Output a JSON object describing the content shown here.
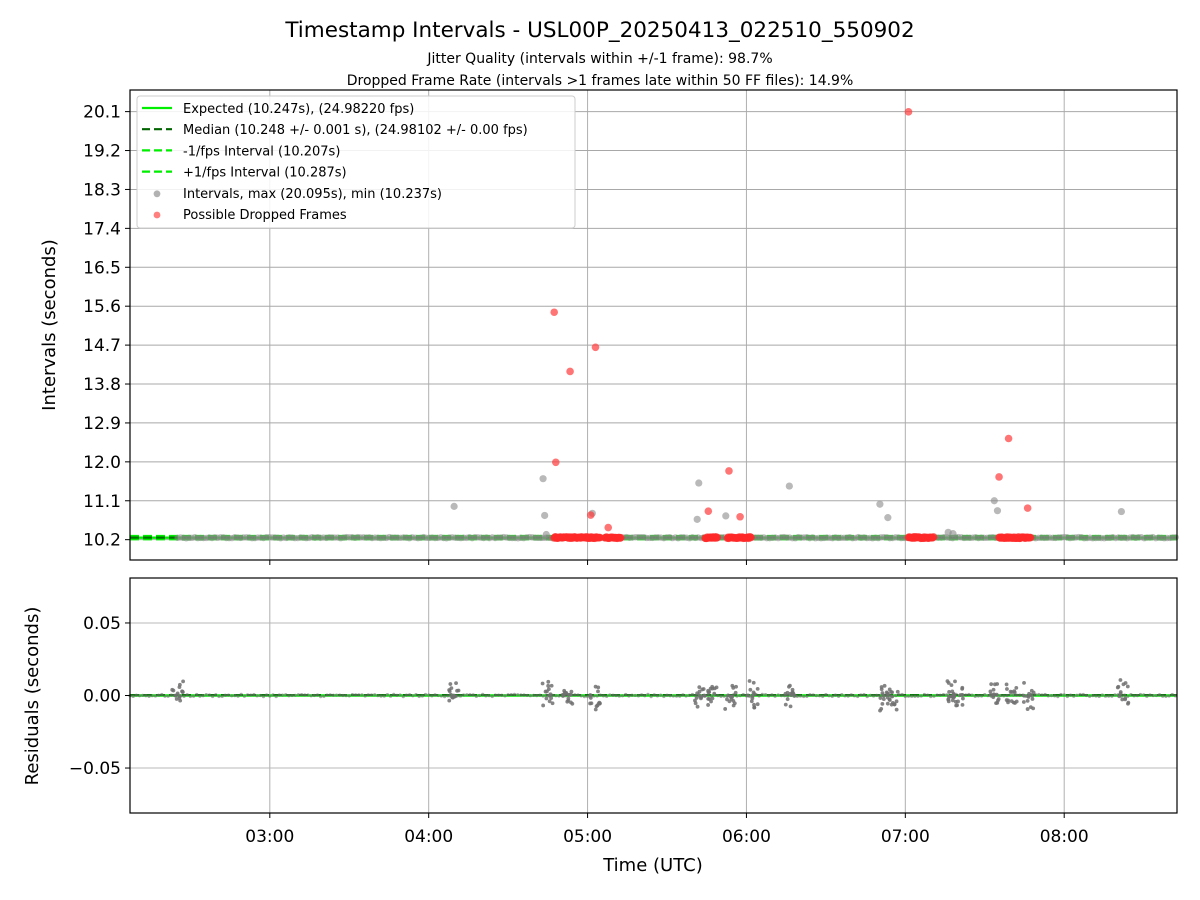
{
  "chart_data": {
    "type": "scatter",
    "title": "Timestamp Intervals - USL00P_20250413_022510_550902",
    "subtitle_lines": [
      "Jitter Quality (intervals within +/-1 frame): 98.7%",
      "Dropped Frame Rate (intervals >1 frames late within 50 FF files): 14.9%"
    ],
    "xlabel": "Time (UTC)",
    "x_ticks": [
      "03:00",
      "04:00",
      "05:00",
      "06:00",
      "07:00",
      "08:00"
    ],
    "x_tick_hours": [
      3,
      4,
      5,
      6,
      7,
      8
    ],
    "xlim_hours": [
      2.12,
      8.71
    ],
    "grid": true,
    "top_panel": {
      "ylabel": "Intervals (seconds)",
      "ylim": [
        9.73,
        20.6
      ],
      "y_ticks": [
        "10.2",
        "11.1",
        "12.0",
        "12.9",
        "13.8",
        "14.7",
        "15.6",
        "16.5",
        "17.4",
        "18.3",
        "19.2",
        "20.1"
      ],
      "y_tick_values": [
        10.2,
        11.1,
        12.0,
        12.9,
        13.8,
        14.7,
        15.6,
        16.5,
        17.4,
        18.3,
        19.2,
        20.1
      ],
      "legend_placement": "top-left",
      "legend": [
        {
          "label": "Expected (10.247s), (24.98220 fps)",
          "style": "solid",
          "color": "#00ee00"
        },
        {
          "label": "Median (10.248 +/- 0.001 s), (24.98102 +/- 0.00 fps)",
          "style": "dashed",
          "color": "#006400"
        },
        {
          "label": "-1/fps Interval (10.207s)",
          "style": "dashed",
          "color": "#00ee00"
        },
        {
          "label": "+1/fps Interval (10.287s)",
          "style": "dashed",
          "color": "#00ee00"
        },
        {
          "label": "Intervals, max (20.095s), min (10.237s)",
          "style": "marker",
          "color": "#888888"
        },
        {
          "label": "Possible Dropped Frames",
          "style": "marker",
          "color": "#ff3b3b"
        }
      ],
      "expected_interval": 10.247,
      "median_interval": 10.248,
      "minus_interval": 10.207,
      "plus_interval": 10.287,
      "dense_interval_ranges_hours": [
        [
          2.42,
          8.71
        ]
      ],
      "dense_dropped_ranges_hours": [
        [
          4.79,
          5.08
        ],
        [
          5.11,
          5.21
        ],
        [
          5.74,
          5.82
        ],
        [
          5.88,
          6.03
        ],
        [
          7.02,
          7.18
        ],
        [
          7.59,
          7.79
        ]
      ],
      "outlier_intervals": [
        {
          "t": 4.16,
          "v": 10.97
        },
        {
          "t": 4.72,
          "v": 11.61
        },
        {
          "t": 4.73,
          "v": 10.76
        },
        {
          "t": 4.74,
          "v": 10.32
        },
        {
          "t": 5.03,
          "v": 10.81
        },
        {
          "t": 5.69,
          "v": 10.67
        },
        {
          "t": 5.7,
          "v": 11.51
        },
        {
          "t": 5.87,
          "v": 10.75
        },
        {
          "t": 6.27,
          "v": 11.44
        },
        {
          "t": 6.84,
          "v": 11.02
        },
        {
          "t": 6.89,
          "v": 10.71
        },
        {
          "t": 7.27,
          "v": 10.37
        },
        {
          "t": 7.3,
          "v": 10.34
        },
        {
          "t": 7.56,
          "v": 11.1
        },
        {
          "t": 7.58,
          "v": 10.87
        },
        {
          "t": 8.36,
          "v": 10.85
        }
      ],
      "outlier_dropped": [
        {
          "t": 4.79,
          "v": 15.46
        },
        {
          "t": 4.89,
          "v": 14.09
        },
        {
          "t": 4.8,
          "v": 11.99
        },
        {
          "t": 5.05,
          "v": 14.65
        },
        {
          "t": 5.02,
          "v": 10.77
        },
        {
          "t": 5.13,
          "v": 10.48
        },
        {
          "t": 5.76,
          "v": 10.86
        },
        {
          "t": 5.89,
          "v": 11.79
        },
        {
          "t": 5.96,
          "v": 10.73
        },
        {
          "t": 7.02,
          "v": 20.095
        },
        {
          "t": 7.65,
          "v": 12.54
        },
        {
          "t": 7.59,
          "v": 11.65
        },
        {
          "t": 7.77,
          "v": 10.93
        }
      ]
    },
    "bottom_panel": {
      "ylabel": "Residuals (seconds)",
      "ylim": [
        -0.081,
        0.081
      ],
      "y_ticks": [
        "0.05",
        "0.00",
        "−0.05"
      ],
      "y_tick_values": [
        0.05,
        0.0,
        -0.05
      ],
      "residual_clusters_hours": [
        2.42,
        4.16,
        4.75,
        4.88,
        5.05,
        5.71,
        5.78,
        5.9,
        6.04,
        6.28,
        6.86,
        6.92,
        7.28,
        7.33,
        7.57,
        7.67,
        7.78,
        8.37
      ],
      "residual_spread": 0.011
    }
  }
}
